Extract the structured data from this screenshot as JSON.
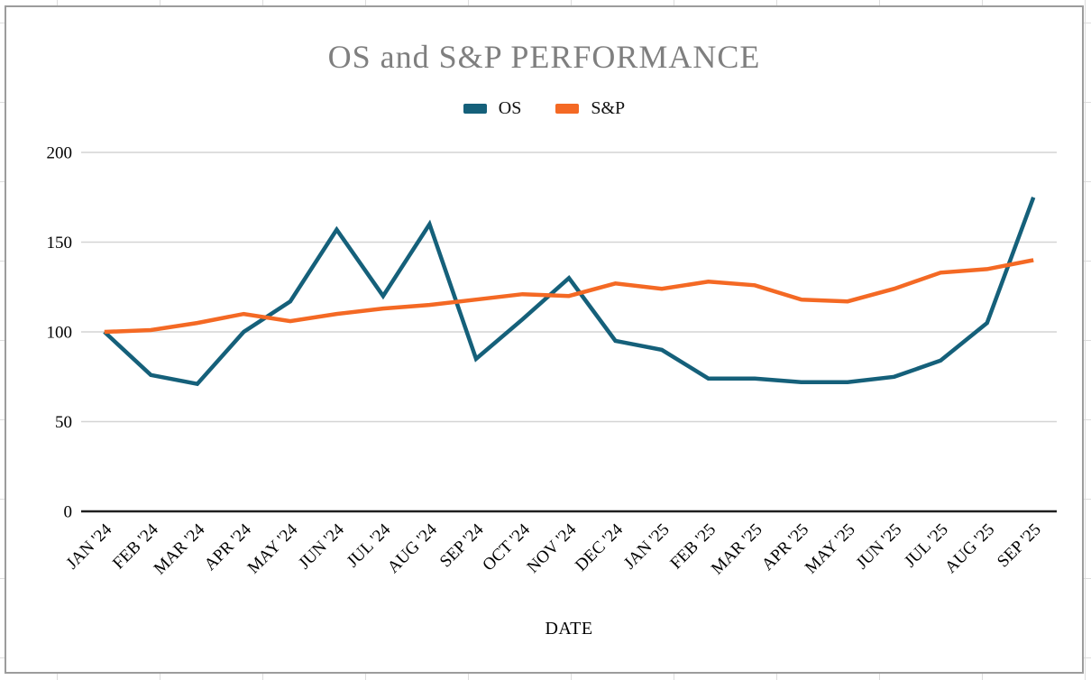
{
  "chart": {
    "title": "OS and S&P PERFORMANCE",
    "xlabel": "DATE"
  },
  "chart_data": {
    "type": "line",
    "title": "OS and S&P PERFORMANCE",
    "xlabel": "DATE",
    "ylabel": "",
    "categories": [
      "JAN '24",
      "FEB '24",
      "MAR '24",
      "APR '24",
      "MAY '24",
      "JUN '24",
      "JUL '24",
      "AUG '24",
      "SEP '24",
      "OCT '24",
      "NOV '24",
      "DEC '24",
      "JAN '25",
      "FEB '25",
      "MAR '25",
      "APR '25",
      "MAY '25",
      "JUN '25",
      "JUL '25",
      "AUG '25",
      "SEP '25"
    ],
    "series": [
      {
        "name": "OS",
        "color": "#15607a",
        "values": [
          100,
          76,
          71,
          100,
          117,
          157,
          120,
          160,
          85,
          107,
          130,
          95,
          90,
          74,
          74,
          72,
          72,
          75,
          84,
          105,
          175
        ]
      },
      {
        "name": "S&P",
        "color": "#f46924",
        "values": [
          100,
          101,
          105,
          110,
          106,
          110,
          113,
          115,
          118,
          121,
          120,
          127,
          124,
          128,
          126,
          118,
          117,
          124,
          133,
          135,
          140
        ]
      }
    ],
    "ylim": [
      0,
      200
    ],
    "yticks": [
      0,
      50,
      100,
      150,
      200
    ],
    "grid": true,
    "legend_position": "top",
    "colors": {
      "grid": "#d4d4d4",
      "axis": "#1f1f1f",
      "title": "#7f7f7f",
      "tick_label": "#000000"
    }
  }
}
